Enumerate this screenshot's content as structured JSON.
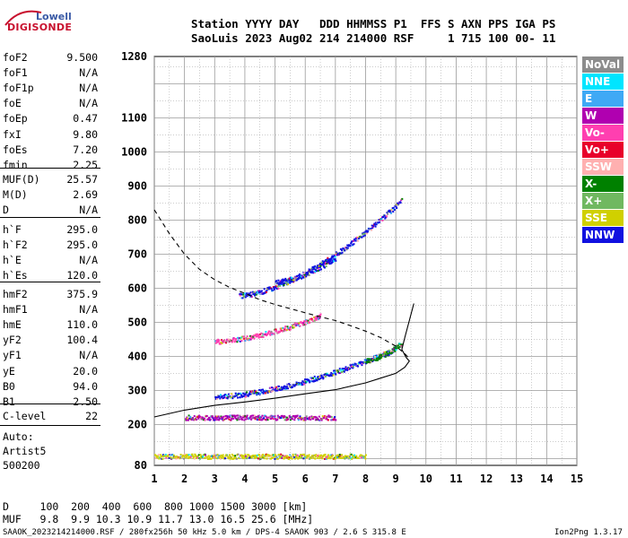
{
  "logo": {
    "top": "Lowell",
    "main": "DIGISONDE"
  },
  "header": {
    "line1": "Station YYYY DAY   DDD HHMMSS P1  FFS S AXN PPS IGA PS",
    "line2": "SaoLuis 2023 Aug02 214 214000 RSF     1 715 100 00- 11"
  },
  "params": [
    {
      "name": "foF2",
      "value": "9.500"
    },
    {
      "name": "foF1",
      "value": "N/A"
    },
    {
      "name": "foF1p",
      "value": "N/A"
    },
    {
      "name": "foE",
      "value": "N/A"
    },
    {
      "name": "foEp",
      "value": "0.47"
    },
    {
      "name": "fxI",
      "value": "9.80"
    },
    {
      "name": "foEs",
      "value": "7.20"
    },
    {
      "name": "fmin",
      "value": "2.25"
    },
    {
      "name": "MUF(D)",
      "value": "25.57"
    },
    {
      "name": "M(D)",
      "value": "2.69"
    },
    {
      "name": "D",
      "value": "N/A"
    },
    {
      "name": "h`F",
      "value": "295.0"
    },
    {
      "name": "h`F2",
      "value": "295.0"
    },
    {
      "name": "h`E",
      "value": "N/A"
    },
    {
      "name": "h`Es",
      "value": "120.0"
    },
    {
      "name": "hmF2",
      "value": "375.9"
    },
    {
      "name": "hmF1",
      "value": "N/A"
    },
    {
      "name": "hmE",
      "value": "110.0"
    },
    {
      "name": "yF2",
      "value": "100.4"
    },
    {
      "name": "yF1",
      "value": "N/A"
    },
    {
      "name": "yE",
      "value": "20.0"
    },
    {
      "name": "B0",
      "value": "94.0"
    },
    {
      "name": "B1",
      "value": "2.50"
    },
    {
      "name": "C-level",
      "value": "22"
    }
  ],
  "auto": {
    "line1": "Auto:",
    "line2": "Artist5",
    "line3": "500200"
  },
  "legend": [
    {
      "label": "NoVal",
      "color": "#8c8c8c"
    },
    {
      "label": "NNE",
      "color": "#00e5ff"
    },
    {
      "label": "E",
      "color": "#3fa9f5"
    },
    {
      "label": "W",
      "color": "#b000b0"
    },
    {
      "label": "Vo-",
      "color": "#ff3fb0"
    },
    {
      "label": "Vo+",
      "color": "#e8002a"
    },
    {
      "label": "SSW",
      "color": "#ffb0b0"
    },
    {
      "label": "X-",
      "color": "#008000"
    },
    {
      "label": "X+",
      "color": "#70b860"
    },
    {
      "label": "SSE",
      "color": "#d0d000"
    },
    {
      "label": "NNW",
      "color": "#1010e0"
    }
  ],
  "bottom": {
    "d_line": "D     100  200  400  600  800 1000 1500 3000 [km]",
    "muf_line": "MUF   9.8  9.9 10.3 10.9 11.7 13.0 16.5 25.6 [MHz]"
  },
  "footer": {
    "left": "SAAOK_2023214214000.RSF / 280fx256h 50 kHz 5.0 km / DPS-4 SAAOK 903 / 2.6 S 315.8 E",
    "right": "Ion2Png 1.3.17"
  },
  "chart_data": {
    "type": "scatter",
    "xlim": [
      1,
      15
    ],
    "ylim": [
      80,
      1280
    ],
    "x_ticks": [
      1,
      2,
      3,
      4,
      5,
      6,
      7,
      8,
      9,
      10,
      11,
      12,
      13,
      14,
      15
    ],
    "y_ticks": [
      80,
      200,
      300,
      400,
      500,
      600,
      700,
      800,
      900,
      1000,
      1100,
      1280
    ],
    "grid": true,
    "series": [
      {
        "points": [
          [
            1.0,
            222
          ],
          [
            2.0,
            242
          ],
          [
            3.0,
            256
          ],
          [
            4.0,
            266
          ],
          [
            5.0,
            277
          ],
          [
            6.0,
            290
          ],
          [
            7.0,
            302
          ],
          [
            8.0,
            322
          ],
          [
            8.5,
            336
          ],
          [
            9.0,
            350
          ],
          [
            9.3,
            368
          ],
          [
            9.45,
            386
          ],
          [
            9.35,
            396
          ],
          [
            9.2,
            420
          ],
          [
            9.3,
            455
          ],
          [
            9.6,
            555
          ]
        ],
        "style": "solid"
      },
      {
        "points": [
          [
            1.0,
            830
          ],
          [
            1.5,
            760
          ],
          [
            2.0,
            700
          ],
          [
            2.5,
            655
          ],
          [
            3.0,
            625
          ],
          [
            3.5,
            602
          ],
          [
            4.0,
            585
          ],
          [
            4.5,
            566
          ],
          [
            5.0,
            552
          ],
          [
            5.5,
            540
          ],
          [
            6.0,
            528
          ],
          [
            6.5,
            516
          ],
          [
            7.0,
            505
          ],
          [
            7.5,
            490
          ],
          [
            8.0,
            474
          ],
          [
            8.5,
            455
          ],
          [
            9.0,
            430
          ],
          [
            9.3,
            408
          ],
          [
            9.45,
            393
          ]
        ],
        "style": "dashed"
      }
    ],
    "traces": [
      {
        "name": "F2 1-hop O",
        "x_range": [
          3.0,
          9.0
        ],
        "y_start": 283,
        "y_end": 423,
        "color": "#1010e0"
      },
      {
        "name": "F2 2-hop O",
        "x_range": [
          3.8,
          9.2
        ],
        "y_start": 580,
        "y_end": 860,
        "color": "#1010e0"
      },
      {
        "name": "F2 X",
        "x_range": [
          8.0,
          9.2
        ],
        "y_start": 390,
        "y_end": 440,
        "color": "#008000"
      },
      {
        "name": "Es",
        "x_range": [
          2.0,
          7.0
        ],
        "y_start": 222,
        "y_end": 222,
        "color": "#b000b0"
      },
      {
        "name": "E mult",
        "x_range": [
          3.0,
          6.5
        ],
        "y_start": 445,
        "y_end": 520,
        "color": "#ff3fb0"
      },
      {
        "name": "F3",
        "x_range": [
          5.0,
          7.0
        ],
        "y_start": 620,
        "y_end": 690,
        "color": "#1010e0"
      },
      {
        "name": "low",
        "x_range": [
          1.0,
          8.0
        ],
        "y_start": 108,
        "y_end": 108,
        "color": "#d0d000"
      }
    ]
  }
}
